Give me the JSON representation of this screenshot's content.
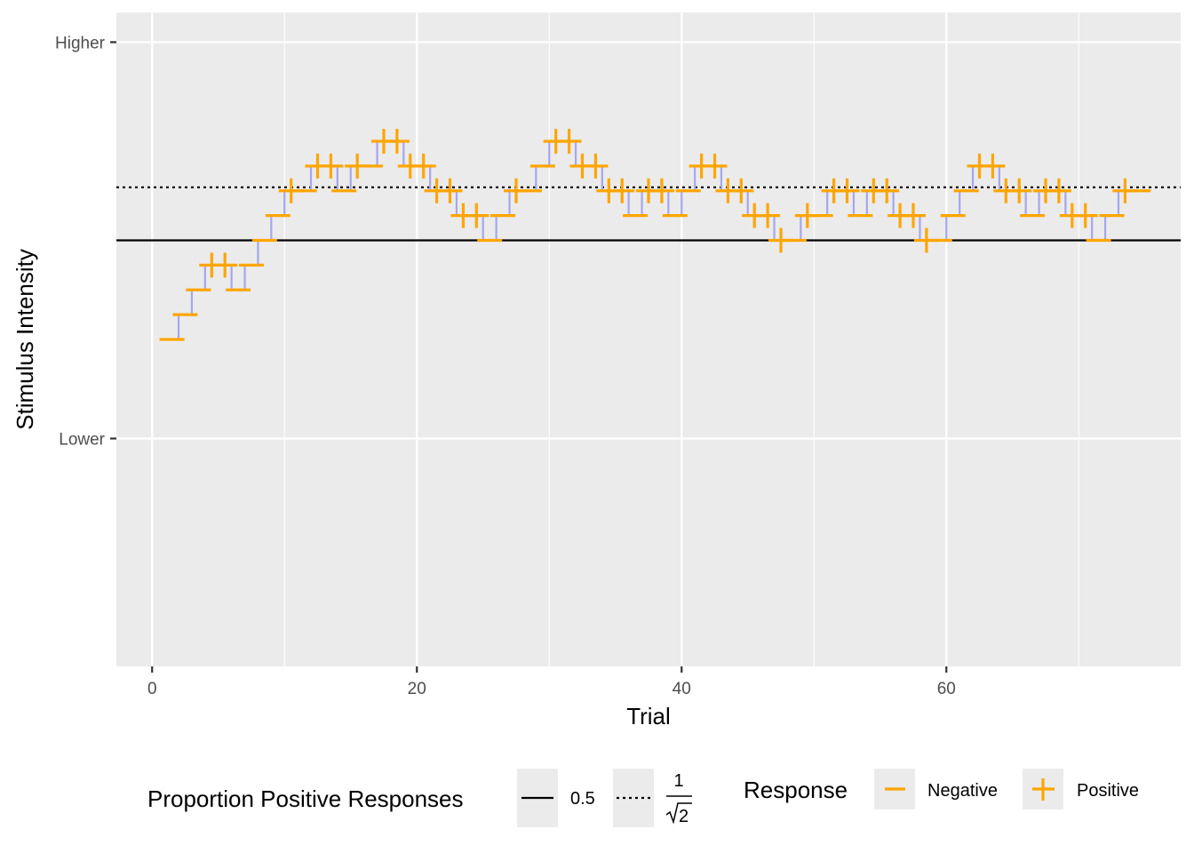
{
  "chart_data": {
    "type": "line",
    "xlabel": "Trial",
    "ylabel": "Stimulus Intensity",
    "xlim": [
      -2.7,
      77.7
    ],
    "ylim": [
      -9.2,
      17.2
    ],
    "x_ticks": [
      0,
      20,
      40,
      60
    ],
    "y_ticks": [
      {
        "value": 0,
        "label": "Lower"
      },
      {
        "value": 16,
        "label": "Higher"
      }
    ],
    "grid": true,
    "background": "#ebebeb",
    "step_color": "#a6a6ee",
    "response_color": "#ffa500",
    "reference_lines": [
      {
        "name": "0.5",
        "y": 8.0,
        "style": "solid"
      },
      {
        "name": "1/√2",
        "y": 10.14,
        "style": "dotted"
      }
    ],
    "trials": [
      {
        "x": 1,
        "y": 4,
        "response": "Negative"
      },
      {
        "x": 2,
        "y": 5,
        "response": "Negative"
      },
      {
        "x": 3,
        "y": 6,
        "response": "Negative"
      },
      {
        "x": 4,
        "y": 7,
        "response": "Positive"
      },
      {
        "x": 5,
        "y": 7,
        "response": "Positive"
      },
      {
        "x": 6,
        "y": 6,
        "response": "Negative"
      },
      {
        "x": 7,
        "y": 7,
        "response": "Negative"
      },
      {
        "x": 8,
        "y": 8,
        "response": "Negative"
      },
      {
        "x": 9,
        "y": 9,
        "response": "Negative"
      },
      {
        "x": 10,
        "y": 10,
        "response": "Positive"
      },
      {
        "x": 11,
        "y": 10,
        "response": "Negative"
      },
      {
        "x": 12,
        "y": 11,
        "response": "Positive"
      },
      {
        "x": 13,
        "y": 11,
        "response": "Positive"
      },
      {
        "x": 14,
        "y": 10,
        "response": "Negative"
      },
      {
        "x": 15,
        "y": 11,
        "response": "Positive"
      },
      {
        "x": 16,
        "y": 11,
        "response": "Negative"
      },
      {
        "x": 17,
        "y": 12,
        "response": "Positive"
      },
      {
        "x": 18,
        "y": 12,
        "response": "Positive"
      },
      {
        "x": 19,
        "y": 11,
        "response": "Positive"
      },
      {
        "x": 20,
        "y": 11,
        "response": "Positive"
      },
      {
        "x": 21,
        "y": 10,
        "response": "Positive"
      },
      {
        "x": 22,
        "y": 10,
        "response": "Positive"
      },
      {
        "x": 23,
        "y": 9,
        "response": "Positive"
      },
      {
        "x": 24,
        "y": 9,
        "response": "Positive"
      },
      {
        "x": 25,
        "y": 8,
        "response": "Negative"
      },
      {
        "x": 26,
        "y": 9,
        "response": "Negative"
      },
      {
        "x": 27,
        "y": 10,
        "response": "Positive"
      },
      {
        "x": 28,
        "y": 10,
        "response": "Negative"
      },
      {
        "x": 29,
        "y": 11,
        "response": "Negative"
      },
      {
        "x": 30,
        "y": 12,
        "response": "Positive"
      },
      {
        "x": 31,
        "y": 12,
        "response": "Positive"
      },
      {
        "x": 32,
        "y": 11,
        "response": "Positive"
      },
      {
        "x": 33,
        "y": 11,
        "response": "Positive"
      },
      {
        "x": 34,
        "y": 10,
        "response": "Positive"
      },
      {
        "x": 35,
        "y": 10,
        "response": "Positive"
      },
      {
        "x": 36,
        "y": 9,
        "response": "Negative"
      },
      {
        "x": 37,
        "y": 10,
        "response": "Positive"
      },
      {
        "x": 38,
        "y": 10,
        "response": "Positive"
      },
      {
        "x": 39,
        "y": 9,
        "response": "Negative"
      },
      {
        "x": 40,
        "y": 10,
        "response": "Negative"
      },
      {
        "x": 41,
        "y": 11,
        "response": "Positive"
      },
      {
        "x": 42,
        "y": 11,
        "response": "Positive"
      },
      {
        "x": 43,
        "y": 10,
        "response": "Positive"
      },
      {
        "x": 44,
        "y": 10,
        "response": "Positive"
      },
      {
        "x": 45,
        "y": 9,
        "response": "Positive"
      },
      {
        "x": 46,
        "y": 9,
        "response": "Positive"
      },
      {
        "x": 47,
        "y": 8,
        "response": "Positive"
      },
      {
        "x": 48,
        "y": 8,
        "response": "Negative"
      },
      {
        "x": 49,
        "y": 9,
        "response": "Positive"
      },
      {
        "x": 50,
        "y": 9,
        "response": "Negative"
      },
      {
        "x": 51,
        "y": 10,
        "response": "Positive"
      },
      {
        "x": 52,
        "y": 10,
        "response": "Positive"
      },
      {
        "x": 53,
        "y": 9,
        "response": "Negative"
      },
      {
        "x": 54,
        "y": 10,
        "response": "Positive"
      },
      {
        "x": 55,
        "y": 10,
        "response": "Positive"
      },
      {
        "x": 56,
        "y": 9,
        "response": "Positive"
      },
      {
        "x": 57,
        "y": 9,
        "response": "Positive"
      },
      {
        "x": 58,
        "y": 8,
        "response": "Positive"
      },
      {
        "x": 59,
        "y": 8,
        "response": "Negative"
      },
      {
        "x": 60,
        "y": 9,
        "response": "Negative"
      },
      {
        "x": 61,
        "y": 10,
        "response": "Negative"
      },
      {
        "x": 62,
        "y": 11,
        "response": "Positive"
      },
      {
        "x": 63,
        "y": 11,
        "response": "Positive"
      },
      {
        "x": 64,
        "y": 10,
        "response": "Positive"
      },
      {
        "x": 65,
        "y": 10,
        "response": "Positive"
      },
      {
        "x": 66,
        "y": 9,
        "response": "Negative"
      },
      {
        "x": 67,
        "y": 10,
        "response": "Positive"
      },
      {
        "x": 68,
        "y": 10,
        "response": "Positive"
      },
      {
        "x": 69,
        "y": 9,
        "response": "Positive"
      },
      {
        "x": 70,
        "y": 9,
        "response": "Positive"
      },
      {
        "x": 71,
        "y": 8,
        "response": "Negative"
      },
      {
        "x": 72,
        "y": 9,
        "response": "Negative"
      },
      {
        "x": 73,
        "y": 10,
        "response": "Positive"
      },
      {
        "x": 74,
        "y": 10,
        "response": "Negative"
      }
    ]
  },
  "legend": {
    "lines_title": "Proportion Positive Responses",
    "line_solid_label": "0.5",
    "line_dotted_numerator": "1",
    "line_dotted_radicand": "2",
    "response_title": "Response",
    "negative_label": "Negative",
    "positive_label": "Positive",
    "negative_glyph": "−",
    "positive_glyph": "+"
  }
}
